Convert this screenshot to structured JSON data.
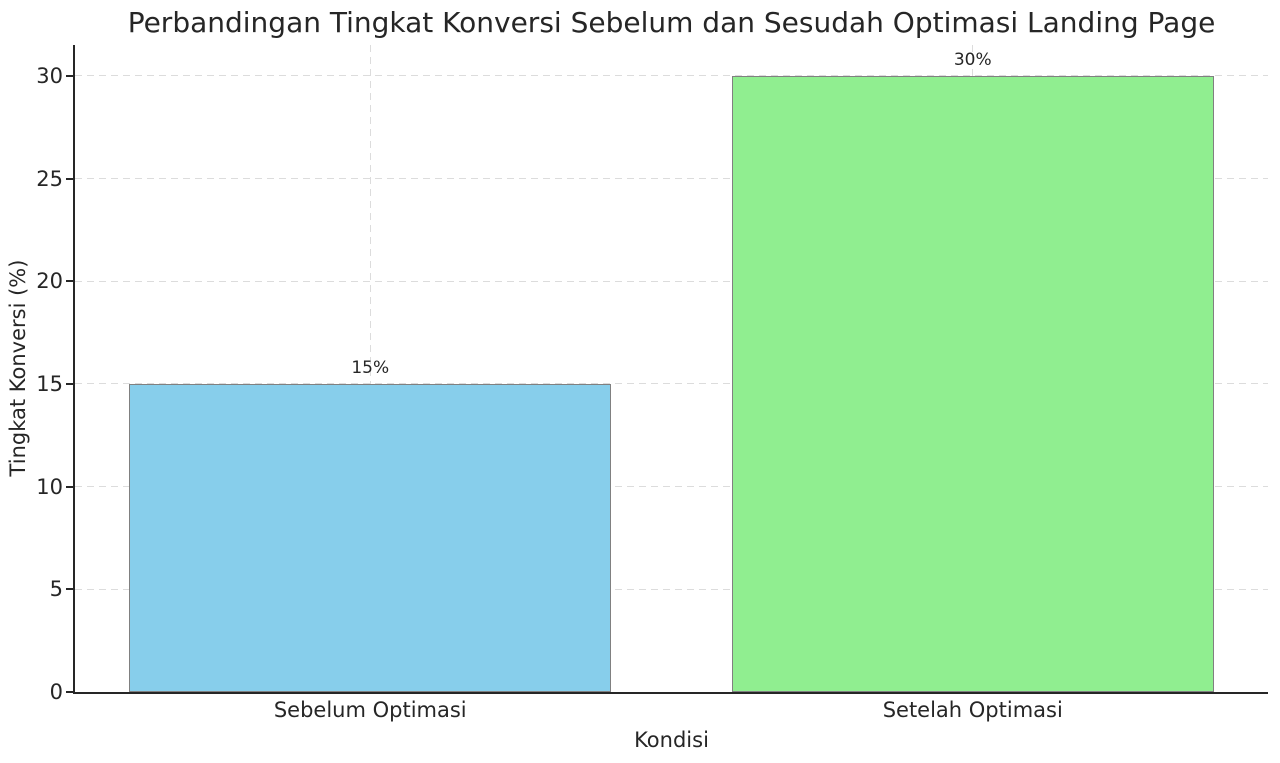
{
  "chart_data": {
    "type": "bar",
    "title": "Perbandingan Tingkat Konversi Sebelum dan Sesudah Optimasi Landing Page",
    "xlabel": "Kondisi",
    "ylabel": "Tingkat Konversi (%)",
    "categories": [
      "Sebelum Optimasi",
      "Setelah Optimasi"
    ],
    "values": [
      15,
      30
    ],
    "value_labels": [
      "15%",
      "30%"
    ],
    "bar_colors": [
      "#87CEEB",
      "#90EE90"
    ],
    "bar_edge_color": "#808080",
    "yticks": [
      0,
      5,
      10,
      15,
      20,
      25,
      30
    ],
    "ylim": [
      0,
      31.5
    ],
    "xlim": [
      -0.49,
      1.49
    ],
    "bar_width": 0.8,
    "grid": true,
    "grid_style": "dashed",
    "grid_color": "#dcdcdc",
    "axis_color": "#262626",
    "background_color": "#ffffff",
    "legend": null
  }
}
